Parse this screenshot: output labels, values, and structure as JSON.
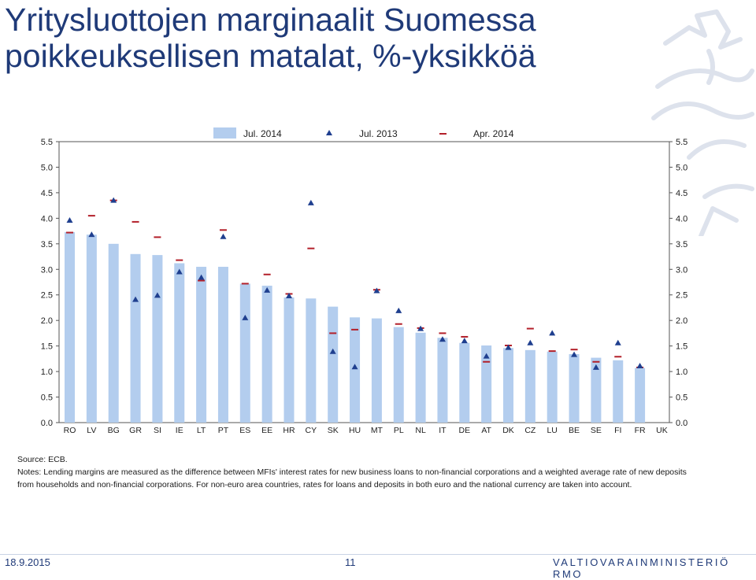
{
  "title_line1": "Yritysluottojen marginaalit Suomessa",
  "title_line2": "poikkeuksellisen matalat, %-yksikköä",
  "source_text": "Source: ECB.",
  "notes_text": "Notes: Lending margins are measured as the difference between MFIs' interest rates for new business loans to non-financial corporations and a weighted average rate of new deposits from households and non-financial corporations. For non-euro area countries, rates for loans and deposits in both euro and the national currency are taken into account.",
  "footer": {
    "date": "18.9.2015",
    "page": "11",
    "org": "VALTIOVARAINMINISTERIÖ RMO"
  },
  "colors": {
    "title": "#1f3a78",
    "bar": "#b3cdee",
    "triangle": "#1f3f8f",
    "dash": "#b3202a"
  },
  "logo_icon": "finnish-lion-icon",
  "chart_data": {
    "type": "bar",
    "categories": [
      "RO",
      "LV",
      "BG",
      "GR",
      "SI",
      "IE",
      "LT",
      "PT",
      "ES",
      "EE",
      "HR",
      "CY",
      "SK",
      "HU",
      "MT",
      "PL",
      "NL",
      "IT",
      "DE",
      "AT",
      "DK",
      "CZ",
      "LU",
      "BE",
      "SE",
      "FI",
      "FR",
      "UK"
    ],
    "series": [
      {
        "name": "Jul. 2014",
        "mark": "bar",
        "values": [
          3.73,
          3.68,
          3.5,
          3.3,
          3.28,
          3.12,
          3.05,
          3.05,
          2.72,
          2.68,
          2.45,
          2.43,
          2.27,
          2.06,
          2.04,
          1.87,
          1.76,
          1.66,
          1.56,
          1.51,
          1.46,
          1.42,
          1.39,
          1.34,
          1.27,
          1.22,
          1.07,
          null
        ]
      },
      {
        "name": "Jul. 2013",
        "mark": "triangle",
        "values": [
          3.96,
          3.68,
          4.35,
          2.41,
          2.49,
          2.95,
          2.84,
          3.64,
          2.05,
          2.59,
          2.48,
          4.3,
          1.39,
          1.09,
          2.58,
          2.19,
          1.84,
          1.63,
          1.6,
          1.3,
          1.47,
          1.56,
          1.75,
          1.33,
          1.08,
          1.56,
          1.11,
          null
        ]
      },
      {
        "name": "Apr. 2014",
        "mark": "dash",
        "values": [
          3.72,
          4.05,
          4.35,
          3.93,
          3.63,
          3.18,
          2.78,
          3.77,
          2.72,
          2.9,
          2.52,
          3.41,
          1.75,
          1.82,
          2.6,
          1.93,
          1.85,
          1.75,
          1.68,
          1.19,
          1.51,
          1.84,
          1.4,
          1.43,
          1.19,
          1.29,
          1.08,
          null
        ]
      }
    ],
    "ylim": [
      0.0,
      5.5
    ],
    "yticks": [
      "0.0",
      "0.5",
      "1.0",
      "1.5",
      "2.0",
      "2.5",
      "3.0",
      "3.5",
      "4.0",
      "4.5",
      "5.0",
      "5.5"
    ],
    "legend_position": "top-center",
    "grid": false
  }
}
